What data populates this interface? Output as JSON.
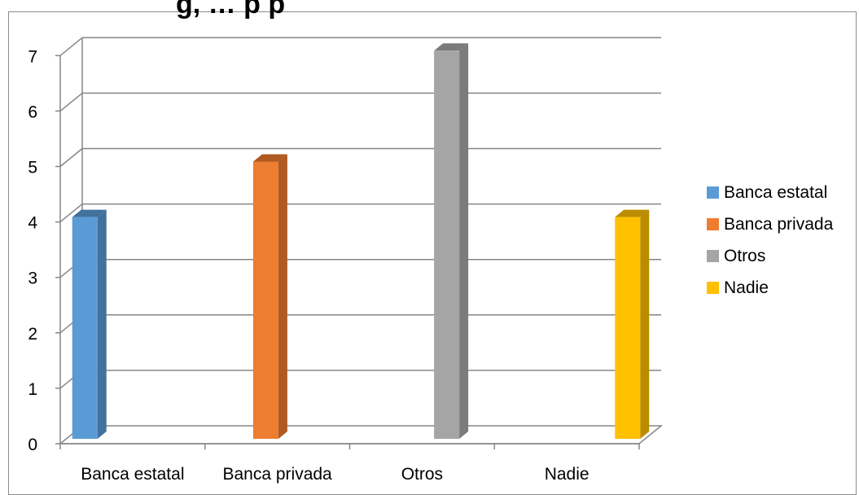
{
  "chart_data": {
    "type": "bar",
    "title": "g, … p p",
    "categories": [
      "Banca estatal",
      "Banca privada",
      "Otros",
      "Nadie"
    ],
    "series": [
      {
        "name": "Banca estatal",
        "values": [
          4,
          null,
          null,
          null
        ],
        "color": "#5b9bd5",
        "side_color": "#41719c"
      },
      {
        "name": "Banca privada",
        "values": [
          null,
          5,
          null,
          null
        ],
        "color": "#ed7d31",
        "side_color": "#ae5a21"
      },
      {
        "name": "Otros",
        "values": [
          null,
          null,
          7,
          null
        ],
        "color": "#a5a5a5",
        "side_color": "#7b7b7b"
      },
      {
        "name": "Nadie",
        "values": [
          null,
          null,
          null,
          4
        ],
        "color": "#ffc000",
        "side_color": "#bc8c00"
      }
    ],
    "y_ticks": [
      "0",
      "1",
      "2",
      "3",
      "4",
      "5",
      "6",
      "7"
    ],
    "ylim": [
      0,
      7
    ],
    "xlabel": "",
    "ylabel": "",
    "grid": true,
    "three_d": true,
    "legend_position": "right"
  }
}
